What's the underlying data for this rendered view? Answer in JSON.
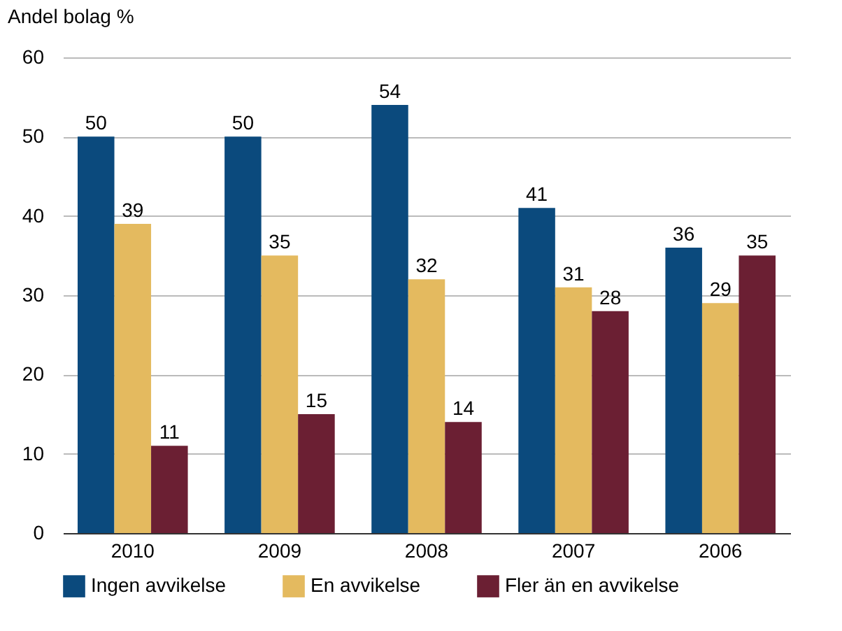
{
  "chart_data": {
    "type": "bar",
    "ylabel": "Andel bolag %",
    "categories": [
      "2010",
      "2009",
      "2008",
      "2007",
      "2006"
    ],
    "series": [
      {
        "name": "Ingen avvikelse",
        "color": "#0b4a7d",
        "values": [
          50,
          50,
          54,
          41,
          36
        ]
      },
      {
        "name": "En avvikelse",
        "color": "#e4ba5f",
        "values": [
          39,
          35,
          32,
          31,
          29
        ]
      },
      {
        "name": "Fler än en avvikelse",
        "color": "#6b1f33",
        "values": [
          11,
          15,
          14,
          28,
          35
        ]
      }
    ],
    "ylim": [
      0,
      60
    ],
    "yticks": [
      0,
      10,
      20,
      30,
      40,
      50,
      60
    ],
    "grid": "y",
    "legend": "bottom",
    "data_labels": true
  }
}
